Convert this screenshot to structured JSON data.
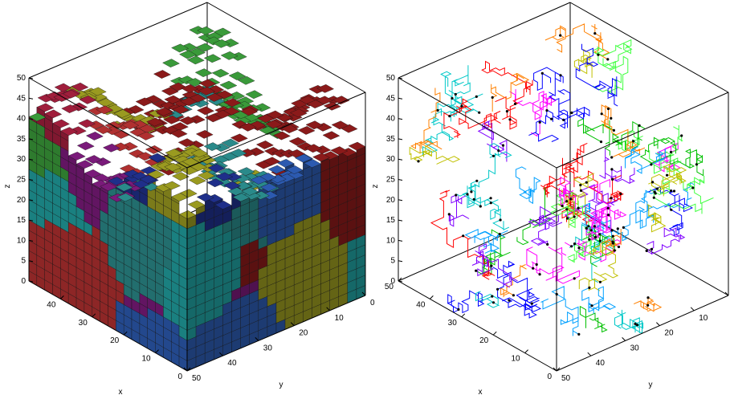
{
  "figure": {
    "background": "#ffffff"
  },
  "chart_data": [
    {
      "type": "3d-voxel",
      "panel": "left",
      "xlabel": "x",
      "ylabel": "y",
      "zlabel": "z",
      "xlim": [
        0,
        50
      ],
      "ylim": [
        0,
        50
      ],
      "zlim": [
        0,
        50
      ],
      "x_ticks": [
        "0",
        "10",
        "20",
        "30",
        "40"
      ],
      "y_ticks": [
        "0",
        "10",
        "20",
        "30",
        "40",
        "50"
      ],
      "z_ticks": [
        "0",
        "5",
        "10",
        "15",
        "20",
        "25",
        "30",
        "35",
        "40",
        "45",
        "50"
      ],
      "palette": [
        "#8b1a1a",
        "#a01e3c",
        "#1f2f8a",
        "#2a8a8a",
        "#3a9a3a",
        "#9a9a20",
        "#7a1a7a",
        "#b03030",
        "#20a0a0",
        "#2c5ab0"
      ],
      "grid": false
    },
    {
      "type": "3d-line",
      "panel": "right",
      "xlabel": "x",
      "ylabel": "y",
      "zlabel": "z",
      "xlim": [
        0,
        50
      ],
      "ylim": [
        0,
        50
      ],
      "zlim": [
        0,
        50
      ],
      "x_ticks": [
        "0",
        "10",
        "20",
        "30",
        "40",
        "50"
      ],
      "y_ticks": [
        "0",
        "10",
        "20",
        "30",
        "40",
        "50"
      ],
      "z_ticks": [
        "0",
        "5",
        "10",
        "15",
        "20",
        "25",
        "30",
        "35",
        "40",
        "45",
        "50"
      ],
      "palette": [
        "#ff0000",
        "#00c000",
        "#0000ff",
        "#ff00ff",
        "#00c8c8",
        "#ff8000",
        "#8000ff",
        "#40ff40",
        "#c0c000",
        "#00a0ff"
      ],
      "junction_color": "#000000",
      "grid": false
    }
  ]
}
